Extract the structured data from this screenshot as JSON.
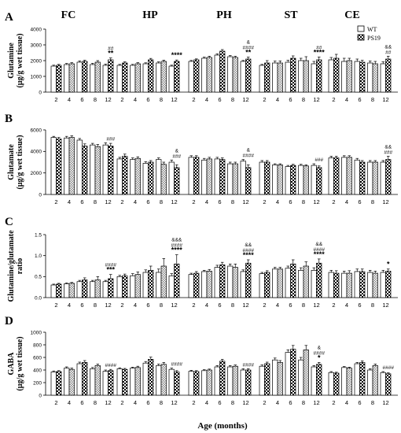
{
  "figure": {
    "regions": [
      "FC",
      "HP",
      "PH",
      "ST",
      "CE"
    ],
    "x_title": "Age (months)",
    "legend": [
      {
        "label": "WT",
        "pattern": "white"
      },
      {
        "label": "PS19",
        "pattern": "checker"
      }
    ]
  },
  "chart_data": [
    {
      "type": "bar",
      "panel": "A",
      "ylabel_lines": [
        "Glutamine",
        "(µg/g wet tissue)"
      ],
      "ylim": [
        0,
        4000
      ],
      "yticks": [
        "0",
        "1000",
        "2000",
        "3000",
        "4000"
      ],
      "groups": [
        {
          "region": "FC",
          "ages": [
            "2",
            "4",
            "6",
            "8",
            "12"
          ],
          "WT": [
            1650,
            1750,
            1900,
            1750,
            1700
          ],
          "PS19": [
            1700,
            1800,
            1950,
            1900,
            2050
          ],
          "WT_err": [
            60,
            70,
            80,
            80,
            80
          ],
          "PS19_err": [
            60,
            70,
            80,
            100,
            120
          ]
        },
        {
          "region": "HP",
          "ages": [
            "2",
            "4",
            "6",
            "8",
            "12"
          ],
          "WT": [
            1700,
            1700,
            1800,
            1850,
            1650
          ],
          "PS19": [
            1850,
            1800,
            2050,
            1950,
            1950
          ],
          "WT_err": [
            60,
            60,
            60,
            70,
            60
          ],
          "PS19_err": [
            70,
            70,
            90,
            80,
            90
          ]
        },
        {
          "region": "PH",
          "ages": [
            "2",
            "4",
            "6",
            "8",
            "12"
          ],
          "WT": [
            1950,
            2150,
            2350,
            2250,
            1950
          ],
          "PS19": [
            2050,
            2200,
            2600,
            2200,
            2100
          ],
          "WT_err": [
            60,
            70,
            80,
            70,
            60
          ],
          "PS19_err": [
            60,
            80,
            100,
            80,
            120
          ]
        },
        {
          "region": "ST",
          "ages": [
            "2",
            "4",
            "6",
            "8",
            "12"
          ],
          "WT": [
            1700,
            1850,
            1900,
            2000,
            1800
          ],
          "PS19": [
            1850,
            1850,
            2150,
            2000,
            2050
          ],
          "WT_err": [
            60,
            120,
            120,
            150,
            150
          ],
          "PS19_err": [
            150,
            130,
            150,
            250,
            180
          ]
        },
        {
          "region": "CE",
          "ages": [
            "2",
            "4",
            "6",
            "8",
            "12"
          ],
          "WT": [
            2050,
            1950,
            1950,
            1850,
            1800
          ],
          "PS19": [
            2150,
            2000,
            1900,
            1800,
            2100
          ],
          "WT_err": [
            150,
            200,
            150,
            120,
            120
          ],
          "PS19_err": [
            250,
            150,
            120,
            150,
            180
          ]
        }
      ],
      "annotations": [
        {
          "region": "FC",
          "age": "12",
          "lines": [
            "##",
            "**"
          ]
        },
        {
          "region": "HP",
          "age": "12",
          "lines": [
            "****"
          ]
        },
        {
          "region": "PH",
          "age": "12",
          "lines": [
            "&",
            "####",
            "**"
          ]
        },
        {
          "region": "ST",
          "age": "12",
          "lines": [
            "##",
            "****"
          ]
        },
        {
          "region": "CE",
          "age": "12",
          "lines": [
            "&&",
            "##"
          ]
        }
      ]
    },
    {
      "type": "bar",
      "panel": "B",
      "ylabel_lines": [
        "Glutamate",
        "(µg/g wet tissue)"
      ],
      "ylim": [
        0,
        6000
      ],
      "yticks": [
        "0",
        "2000",
        "4000",
        "6000"
      ],
      "groups": [
        {
          "region": "FC",
          "ages": [
            "2",
            "4",
            "6",
            "8",
            "12"
          ],
          "WT": [
            5300,
            5250,
            5050,
            4600,
            4600
          ],
          "PS19": [
            5150,
            5300,
            4500,
            4450,
            4500
          ],
          "WT_err": [
            100,
            150,
            150,
            150,
            200
          ],
          "PS19_err": [
            150,
            150,
            200,
            200,
            250
          ]
        },
        {
          "region": "HP",
          "ages": [
            "2",
            "4",
            "6",
            "8",
            "12"
          ],
          "WT": [
            3300,
            3250,
            2900,
            3250,
            3000
          ],
          "PS19": [
            3550,
            3350,
            3000,
            2800,
            2500
          ],
          "WT_err": [
            150,
            150,
            150,
            150,
            200
          ],
          "PS19_err": [
            200,
            150,
            150,
            200,
            250
          ]
        },
        {
          "region": "PH",
          "ages": [
            "2",
            "4",
            "6",
            "8",
            "12"
          ],
          "WT": [
            3450,
            3200,
            3300,
            2850,
            3100
          ],
          "PS19": [
            3450,
            3300,
            3250,
            2850,
            2500
          ],
          "WT_err": [
            150,
            150,
            150,
            150,
            150
          ],
          "PS19_err": [
            150,
            150,
            150,
            150,
            250
          ]
        },
        {
          "region": "ST",
          "ages": [
            "2",
            "4",
            "6",
            "8",
            "12"
          ],
          "WT": [
            3000,
            2750,
            2600,
            2700,
            2700
          ],
          "PS19": [
            3000,
            2750,
            2700,
            2650,
            2500
          ],
          "WT_err": [
            150,
            100,
            100,
            100,
            150
          ],
          "PS19_err": [
            150,
            100,
            100,
            100,
            150
          ]
        },
        {
          "region": "CE",
          "ages": [
            "2",
            "4",
            "6",
            "8",
            "12"
          ],
          "WT": [
            3400,
            3450,
            3200,
            3000,
            3000
          ],
          "PS19": [
            3400,
            3450,
            3000,
            3000,
            3250
          ],
          "WT_err": [
            150,
            150,
            150,
            150,
            150
          ],
          "PS19_err": [
            150,
            150,
            150,
            150,
            300
          ]
        }
      ],
      "annotations": [
        {
          "region": "FC",
          "age": "12",
          "lines": [
            "###"
          ]
        },
        {
          "region": "HP",
          "age": "12",
          "lines": [
            "&",
            "###"
          ]
        },
        {
          "region": "PH",
          "age": "12",
          "lines": [
            "&",
            "####"
          ]
        },
        {
          "region": "ST",
          "age": "12",
          "lines": [
            "###"
          ]
        },
        {
          "region": "CE",
          "age": "12",
          "lines": [
            "&&",
            "###"
          ]
        }
      ]
    },
    {
      "type": "bar",
      "panel": "C",
      "ylabel_lines": [
        "Glutamine/glutamate",
        "ratio"
      ],
      "ylim": [
        0,
        1.5
      ],
      "yticks": [
        "0.0",
        "0.5",
        "1.0",
        "1.5"
      ],
      "groups": [
        {
          "region": "FC",
          "ages": [
            "2",
            "4",
            "6",
            "8",
            "12"
          ],
          "WT": [
            0.3,
            0.33,
            0.38,
            0.38,
            0.38
          ],
          "PS19": [
            0.32,
            0.34,
            0.42,
            0.42,
            0.45
          ],
          "WT_err": [
            0.02,
            0.02,
            0.03,
            0.03,
            0.03
          ],
          "PS19_err": [
            0.02,
            0.02,
            0.05,
            0.08,
            0.1
          ]
        },
        {
          "region": "HP",
          "ages": [
            "2",
            "4",
            "6",
            "8",
            "12"
          ],
          "WT": [
            0.5,
            0.52,
            0.6,
            0.6,
            0.52
          ],
          "PS19": [
            0.52,
            0.55,
            0.65,
            0.75,
            0.8
          ],
          "WT_err": [
            0.03,
            0.05,
            0.06,
            0.08,
            0.05
          ],
          "PS19_err": [
            0.04,
            0.06,
            0.1,
            0.18,
            0.22
          ]
        },
        {
          "region": "PH",
          "ages": [
            "2",
            "4",
            "6",
            "8",
            "12"
          ],
          "WT": [
            0.55,
            0.62,
            0.72,
            0.75,
            0.62
          ],
          "PS19": [
            0.58,
            0.63,
            0.78,
            0.72,
            0.82
          ],
          "WT_err": [
            0.03,
            0.03,
            0.05,
            0.05,
            0.04
          ],
          "PS19_err": [
            0.04,
            0.04,
            0.06,
            0.08,
            0.08
          ]
        },
        {
          "region": "ST",
          "ages": [
            "2",
            "4",
            "6",
            "8",
            "12"
          ],
          "WT": [
            0.57,
            0.68,
            0.7,
            0.65,
            0.65
          ],
          "PS19": [
            0.6,
            0.68,
            0.8,
            0.75,
            0.82
          ],
          "WT_err": [
            0.03,
            0.04,
            0.05,
            0.06,
            0.06
          ],
          "PS19_err": [
            0.04,
            0.04,
            0.1,
            0.1,
            0.1
          ]
        },
        {
          "region": "CE",
          "ages": [
            "2",
            "4",
            "6",
            "8",
            "12"
          ],
          "WT": [
            0.6,
            0.58,
            0.62,
            0.6,
            0.6
          ],
          "PS19": [
            0.58,
            0.58,
            0.62,
            0.58,
            0.63
          ],
          "WT_err": [
            0.05,
            0.05,
            0.06,
            0.05,
            0.05
          ],
          "PS19_err": [
            0.06,
            0.06,
            0.06,
            0.05,
            0.05
          ]
        }
      ],
      "annotations": [
        {
          "region": "FC",
          "age": "12",
          "lines": [
            "####",
            "***"
          ]
        },
        {
          "region": "HP",
          "age": "12",
          "lines": [
            "&&&",
            "####",
            "****"
          ]
        },
        {
          "region": "PH",
          "age": "12",
          "lines": [
            "&&",
            "####",
            "****"
          ]
        },
        {
          "region": "ST",
          "age": "12",
          "lines": [
            "&&",
            "####",
            "****"
          ]
        },
        {
          "region": "CE",
          "age": "12",
          "lines": [
            "*"
          ]
        }
      ]
    },
    {
      "type": "bar",
      "panel": "D",
      "ylabel_lines": [
        "GABA",
        "(µg/g wet tissue)"
      ],
      "ylim": [
        0,
        1000
      ],
      "yticks": [
        "0",
        "200",
        "400",
        "600",
        "800",
        "1000"
      ],
      "groups": [
        {
          "region": "FC",
          "ages": [
            "2",
            "4",
            "6",
            "8",
            "12"
          ],
          "WT": [
            370,
            430,
            500,
            420,
            380
          ],
          "PS19": [
            375,
            410,
            520,
            470,
            390
          ],
          "WT_err": [
            15,
            20,
            25,
            20,
            20
          ],
          "PS19_err": [
            15,
            20,
            30,
            25,
            20
          ]
        },
        {
          "region": "HP",
          "ages": [
            "2",
            "4",
            "6",
            "8",
            "12"
          ],
          "WT": [
            420,
            430,
            510,
            470,
            410
          ],
          "PS19": [
            410,
            440,
            570,
            490,
            370
          ],
          "WT_err": [
            15,
            15,
            25,
            25,
            20
          ],
          "PS19_err": [
            15,
            20,
            35,
            30,
            20
          ]
        },
        {
          "region": "PH",
          "ages": [
            "2",
            "4",
            "6",
            "8",
            "12"
          ],
          "WT": [
            380,
            390,
            450,
            450,
            400
          ],
          "PS19": [
            375,
            400,
            540,
            460,
            400
          ],
          "WT_err": [
            15,
            15,
            20,
            20,
            20
          ],
          "PS19_err": [
            15,
            15,
            30,
            20,
            20
          ]
        },
        {
          "region": "ST",
          "ages": [
            "2",
            "4",
            "6",
            "8",
            "12"
          ],
          "WT": [
            460,
            560,
            680,
            560,
            450
          ],
          "PS19": [
            500,
            520,
            730,
            720,
            490
          ],
          "WT_err": [
            20,
            30,
            40,
            40,
            20
          ],
          "PS19_err": [
            25,
            30,
            60,
            70,
            30
          ]
        },
        {
          "region": "CE",
          "ages": [
            "2",
            "4",
            "6",
            "8",
            "12"
          ],
          "WT": [
            360,
            440,
            500,
            400,
            360
          ],
          "PS19": [
            350,
            430,
            520,
            470,
            340
          ],
          "WT_err": [
            15,
            15,
            20,
            20,
            15
          ],
          "PS19_err": [
            15,
            15,
            25,
            25,
            15
          ]
        }
      ],
      "annotations": [
        {
          "region": "FC",
          "age": "12",
          "lines": [
            "####"
          ]
        },
        {
          "region": "HP",
          "age": "12",
          "lines": [
            "####"
          ]
        },
        {
          "region": "PH",
          "age": "12",
          "lines": [
            "####"
          ]
        },
        {
          "region": "ST",
          "age": "12",
          "lines": [
            "&",
            "####",
            "*"
          ]
        },
        {
          "region": "CE",
          "age": "12",
          "lines": [
            "####"
          ]
        }
      ]
    }
  ]
}
